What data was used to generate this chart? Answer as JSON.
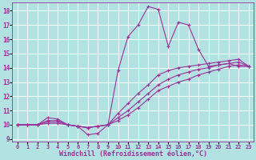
{
  "bg_color": "#b2e2e2",
  "grid_color": "#aad4d4",
  "line_color": "#993399",
  "marker": "+",
  "markersize": 3,
  "linewidth": 0.8,
  "xlabel": "Windchill (Refroidissement éolien,°C)",
  "xlabel_fontsize": 6,
  "xtick_fontsize": 5,
  "ytick_fontsize": 5.5,
  "xlim": [
    -0.5,
    23.5
  ],
  "ylim": [
    8.8,
    18.6
  ],
  "xticks": [
    0,
    1,
    2,
    3,
    4,
    5,
    6,
    7,
    8,
    9,
    10,
    11,
    12,
    13,
    14,
    15,
    16,
    17,
    18,
    19,
    20,
    21,
    22,
    23
  ],
  "yticks": [
    9,
    10,
    11,
    12,
    13,
    14,
    15,
    16,
    17,
    18
  ],
  "series": [
    {
      "x": [
        0,
        1,
        2,
        3,
        4,
        5,
        6,
        7,
        8,
        9,
        10,
        11,
        12,
        13,
        14,
        15,
        16,
        17,
        18,
        19,
        20,
        21,
        22,
        23
      ],
      "y": [
        10.0,
        10.0,
        10.0,
        10.5,
        10.4,
        10.0,
        9.9,
        9.3,
        9.4,
        10.0,
        13.8,
        16.2,
        17.0,
        18.3,
        18.1,
        15.5,
        17.2,
        17.0,
        15.3,
        14.1,
        14.2,
        14.3,
        14.1,
        14.1
      ]
    },
    {
      "x": [
        0,
        1,
        2,
        3,
        4,
        5,
        6,
        7,
        8,
        9,
        10,
        11,
        12,
        13,
        14,
        15,
        16,
        17,
        18,
        19,
        20,
        21,
        22,
        23
      ],
      "y": [
        10.0,
        10.0,
        10.0,
        10.3,
        10.3,
        10.0,
        9.9,
        9.8,
        9.9,
        10.0,
        10.8,
        11.5,
        12.2,
        12.8,
        13.5,
        13.8,
        14.0,
        14.1,
        14.2,
        14.3,
        14.4,
        14.5,
        14.6,
        14.1
      ]
    },
    {
      "x": [
        0,
        1,
        2,
        3,
        4,
        5,
        6,
        7,
        8,
        9,
        10,
        11,
        12,
        13,
        14,
        15,
        16,
        17,
        18,
        19,
        20,
        21,
        22,
        23
      ],
      "y": [
        10.0,
        10.0,
        10.0,
        10.2,
        10.2,
        10.0,
        9.9,
        9.8,
        9.9,
        10.0,
        10.5,
        11.0,
        11.6,
        12.2,
        12.8,
        13.2,
        13.5,
        13.7,
        13.9,
        14.0,
        14.2,
        14.3,
        14.4,
        14.1
      ]
    },
    {
      "x": [
        0,
        1,
        2,
        3,
        4,
        5,
        6,
        7,
        8,
        9,
        10,
        11,
        12,
        13,
        14,
        15,
        16,
        17,
        18,
        19,
        20,
        21,
        22,
        23
      ],
      "y": [
        10.0,
        10.0,
        10.0,
        10.1,
        10.1,
        10.0,
        9.9,
        9.8,
        9.9,
        10.0,
        10.3,
        10.7,
        11.2,
        11.8,
        12.4,
        12.7,
        13.0,
        13.2,
        13.5,
        13.7,
        13.9,
        14.1,
        14.2,
        14.1
      ]
    }
  ]
}
